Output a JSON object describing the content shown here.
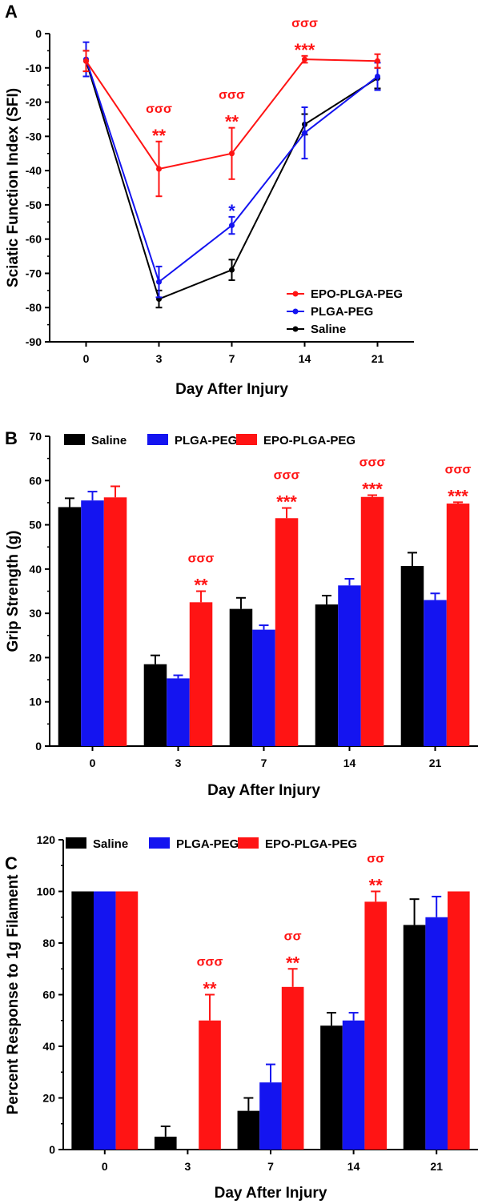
{
  "colors": {
    "saline": "#000000",
    "plga": "#1414f0",
    "epo": "#ff1414"
  },
  "chart_data": [
    {
      "panel": "A",
      "type": "line",
      "categories": [
        "0",
        "3",
        "7",
        "14",
        "21"
      ],
      "xlabel": "Day After Injury",
      "ylabel": "Sciatic Function Index (SFI)",
      "ylim": [
        -90,
        0
      ],
      "yticks": [
        "0",
        "-10",
        "-20",
        "-30",
        "-40",
        "-50",
        "-60",
        "-70",
        "-80",
        "-90"
      ],
      "legend_position": "bottom-right",
      "legend_order": [
        2,
        1,
        0
      ],
      "series": [
        {
          "name": "Saline",
          "color": "#000000",
          "values": [
            -8,
            -77.5,
            -69,
            -26.5,
            -13
          ],
          "errors": [
            3,
            2.5,
            3,
            3,
            3
          ]
        },
        {
          "name": "PLGA-PEG",
          "color": "#1414f0",
          "values": [
            -7.5,
            -72.5,
            -56,
            -29,
            -12.5
          ],
          "errors": [
            5,
            4.5,
            2.5,
            7.5,
            4
          ]
        },
        {
          "name": "EPO-PLGA-PEG",
          "color": "#ff1414",
          "values": [
            -8,
            -39.5,
            -35,
            -7.5,
            -8
          ],
          "errors": [
            3,
            8,
            7.5,
            1,
            2
          ]
        }
      ],
      "annotations": [
        {
          "x_index": 1,
          "y": -39.5,
          "err": 8,
          "color": "#ff1414",
          "lines": [
            "σσσ",
            "**"
          ]
        },
        {
          "x_index": 2,
          "y": -35,
          "err": 7.5,
          "color": "#ff1414",
          "lines": [
            "σσσ",
            "**"
          ]
        },
        {
          "x_index": 3,
          "y": -7.5,
          "err": 1,
          "color": "#ff1414",
          "lines": [
            "σσσ",
            "***"
          ]
        },
        {
          "x_index": 2,
          "y": -56,
          "err": 2.5,
          "color": "#1414f0",
          "lines": [
            "*"
          ]
        }
      ]
    },
    {
      "panel": "B",
      "type": "bar",
      "categories": [
        "0",
        "3",
        "7",
        "14",
        "21"
      ],
      "xlabel": "Day After Injury",
      "ylabel": "Grip Strength (g)",
      "ylim": [
        0,
        70
      ],
      "yticks": [
        "0",
        "10",
        "20",
        "30",
        "40",
        "50",
        "60",
        "70"
      ],
      "legend_position": "top",
      "series": [
        {
          "name": "Saline",
          "color": "#000000",
          "values": [
            54,
            18.5,
            31,
            32,
            40.7
          ],
          "errors": [
            2,
            2,
            2.5,
            2,
            3
          ]
        },
        {
          "name": "PLGA-PEG",
          "color": "#1414f0",
          "values": [
            55.5,
            15.3,
            26.3,
            36.3,
            33
          ],
          "errors": [
            2,
            0.7,
            1,
            1.5,
            1.5
          ]
        },
        {
          "name": "EPO-PLGA-PEG",
          "color": "#ff1414",
          "values": [
            56.2,
            32.5,
            51.5,
            56.3,
            54.8
          ],
          "errors": [
            2.5,
            2.5,
            2.3,
            0.4,
            0.3
          ]
        }
      ],
      "annotations": [
        {
          "x_index": 1,
          "series": 2,
          "color": "#ff1414",
          "lines": [
            "σσσ",
            "**"
          ]
        },
        {
          "x_index": 2,
          "series": 2,
          "color": "#ff1414",
          "lines": [
            "σσσ",
            "***"
          ]
        },
        {
          "x_index": 3,
          "series": 2,
          "color": "#ff1414",
          "lines": [
            "σσσ",
            "***"
          ]
        },
        {
          "x_index": 4,
          "series": 2,
          "color": "#ff1414",
          "lines": [
            "σσσ",
            "***"
          ]
        }
      ]
    },
    {
      "panel": "C",
      "type": "bar",
      "categories": [
        "0",
        "3",
        "7",
        "14",
        "21"
      ],
      "xlabel": "Day After Injury",
      "ylabel": "Percent Response to 1g Filament",
      "ylim": [
        0,
        120
      ],
      "yticks": [
        "0",
        "20",
        "40",
        "60",
        "80",
        "100",
        "120"
      ],
      "legend_position": "top",
      "series": [
        {
          "name": "Saline",
          "color": "#000000",
          "values": [
            100,
            5,
            15,
            48,
            87
          ],
          "errors": [
            0,
            4,
            5,
            5,
            10
          ]
        },
        {
          "name": "PLGA-PEG",
          "color": "#1414f0",
          "values": [
            100,
            0,
            26,
            50,
            90
          ],
          "errors": [
            0,
            0,
            7,
            3,
            8
          ]
        },
        {
          "name": "EPO-PLGA-PEG",
          "color": "#ff1414",
          "values": [
            100,
            50,
            63,
            96,
            100
          ],
          "errors": [
            0,
            10,
            7,
            4,
            0
          ]
        }
      ],
      "annotations": [
        {
          "x_index": 1,
          "series": 2,
          "color": "#ff1414",
          "lines": [
            "σσσ",
            "**"
          ]
        },
        {
          "x_index": 2,
          "series": 2,
          "color": "#ff1414",
          "lines": [
            "σσ",
            "**"
          ]
        },
        {
          "x_index": 3,
          "series": 2,
          "color": "#ff1414",
          "lines": [
            "σσ",
            "**"
          ]
        }
      ]
    }
  ]
}
